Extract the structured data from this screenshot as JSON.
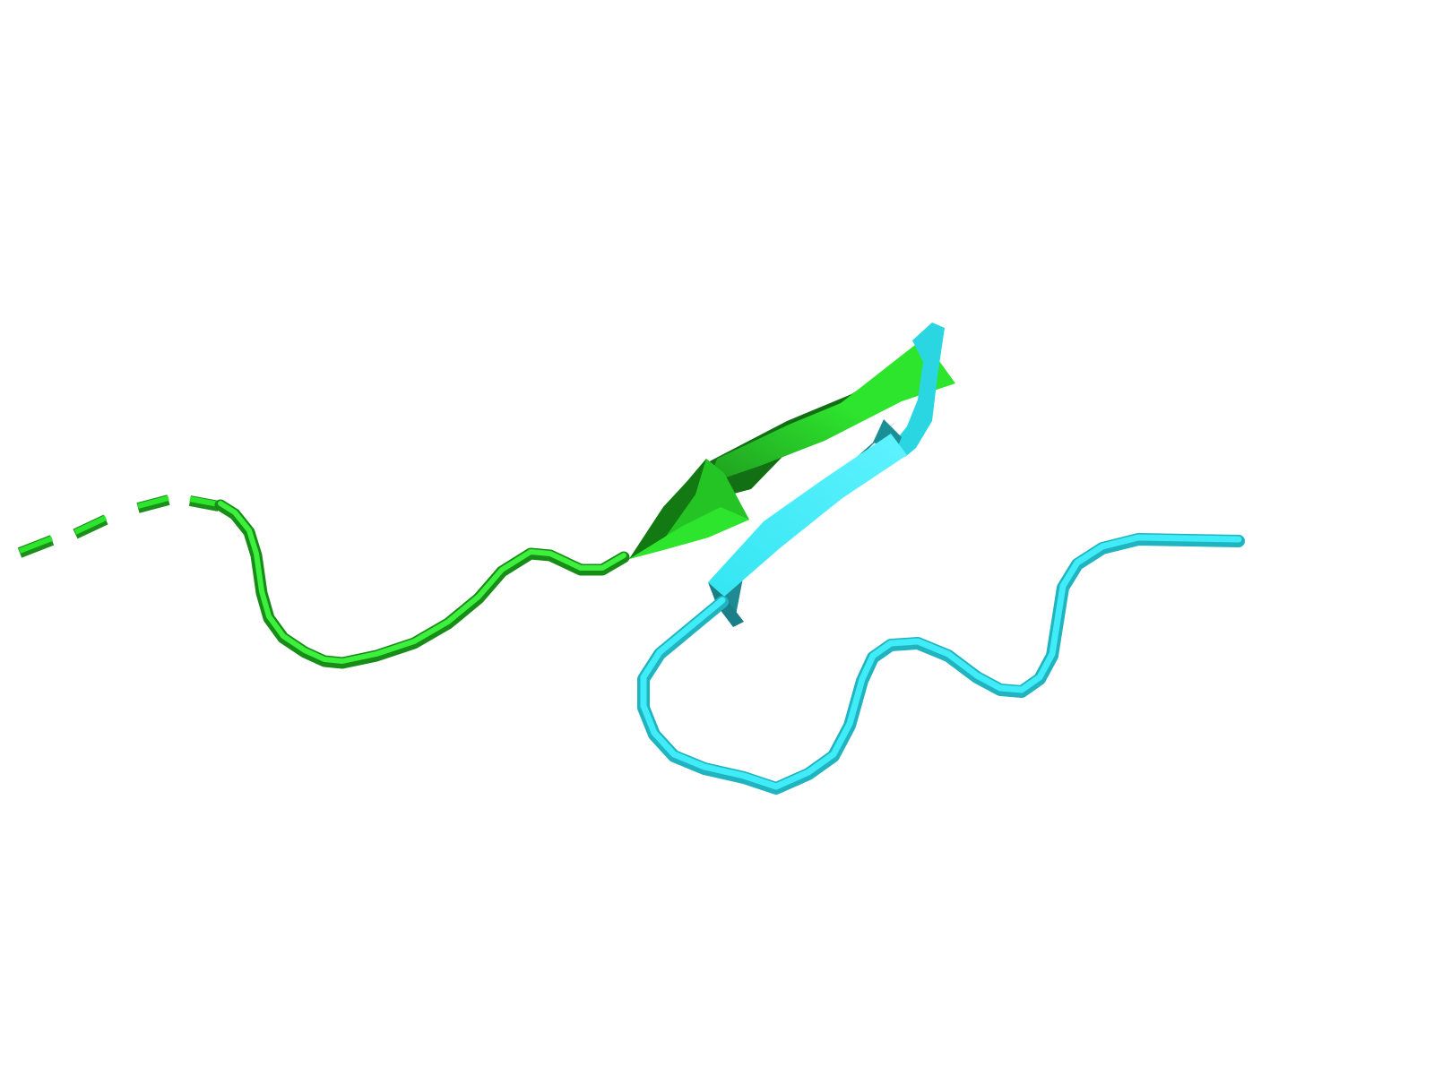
{
  "scene": {
    "background": "#ffffff",
    "style": "cartoon",
    "chains": [
      {
        "name": "chain-a",
        "color": "#2ee52e",
        "shade_color": "#1a8f1a",
        "elements": [
          "dashed-coil",
          "coil",
          "beta-strand"
        ]
      },
      {
        "name": "chain-b",
        "color": "#33e6f2",
        "shade_color": "#1f8f96",
        "elements": [
          "beta-strand",
          "coil"
        ]
      }
    ]
  }
}
